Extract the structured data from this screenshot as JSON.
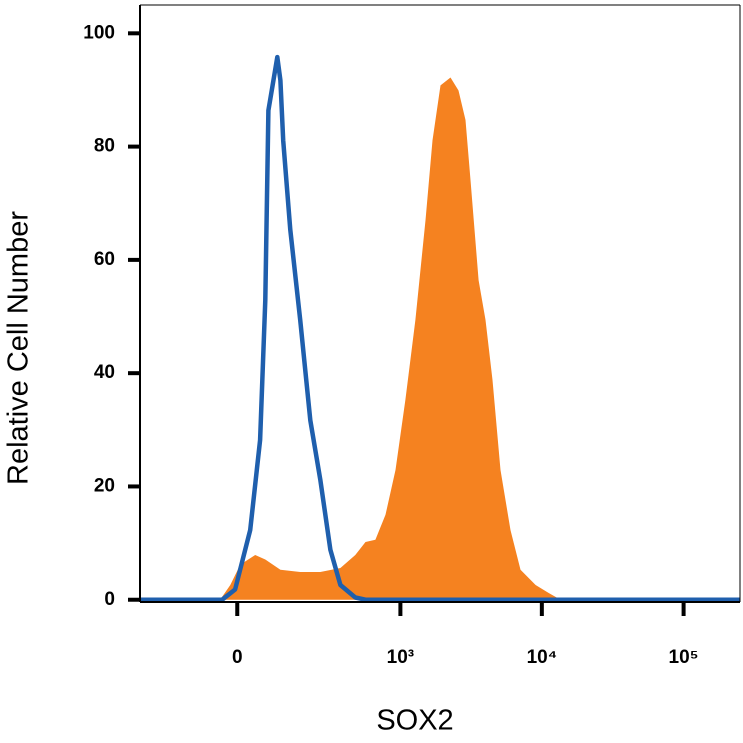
{
  "chart_data": {
    "type": "histogram-overlay",
    "xlabel": "SOX2",
    "ylabel": "Relative Cell Number",
    "xscale": "biexponential",
    "xlim": [
      -330,
      250000
    ],
    "xticks": [
      0,
      {
        "value": 1000,
        "label": "10³"
      },
      {
        "value": 10000,
        "label": "10⁴"
      },
      {
        "value": 100000,
        "label": "10⁵"
      }
    ],
    "ylim": [
      -0.4,
      105
    ],
    "yticks": [
      0,
      20,
      40,
      60,
      80,
      100
    ],
    "series": [
      {
        "color": "#f58220",
        "style": "filled",
        "x": [
          -40,
          -16,
          7,
          42,
          67,
          108,
          172,
          255,
          366,
          473,
          561,
          662,
          782,
          922,
          1086,
          1279,
          1507,
          1690,
          1924,
          2265,
          2579,
          2891,
          3138,
          3578,
          4004,
          4487,
          5108,
          6007,
          7072,
          9031,
          11147,
          13561
        ],
        "values": [
          0,
          2.6,
          6.2,
          7.9,
          7.1,
          5.3,
          4.9,
          4.9,
          5.6,
          7.9,
          10.2,
          10.6,
          15.0,
          22.9,
          35.3,
          49.4,
          67.0,
          81.1,
          90.8,
          92.2,
          89.9,
          84.7,
          74.1,
          56.4,
          49.4,
          38.8,
          22.9,
          12.3,
          5.3,
          2.6,
          1.2,
          0
        ]
      },
      {
        "color": "#1f5fad",
        "style": "line",
        "x": [
          -330,
          -35,
          -5,
          30,
          54,
          67,
          75,
          86,
          99,
          108,
          116,
          138,
          172,
          211,
          255,
          307,
          366,
          473,
          561,
          250000
        ],
        "values": [
          0,
          0,
          1.8,
          12.3,
          28.2,
          52.9,
          86.4,
          90.8,
          95.8,
          91.7,
          81.1,
          65.3,
          49.4,
          31.7,
          21.2,
          8.8,
          2.6,
          0.4,
          0,
          0
        ]
      }
    ]
  }
}
